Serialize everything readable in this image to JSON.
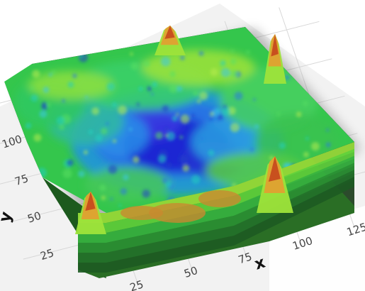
{
  "chart_data": {
    "type": "surface3d",
    "xlabel": "x",
    "ylabel": "y",
    "x_ticks": [
      "25",
      "50",
      "75",
      "100",
      "125"
    ],
    "y_ticks": [
      "25",
      "50",
      "75",
      "100"
    ],
    "xlim": [
      0,
      130
    ],
    "ylim": [
      0,
      130
    ],
    "colormap": "rainbow (blue = low, green = mid, red = high)",
    "colors": {
      "low": "#1a1ad0",
      "mid_low": "#1e90e6",
      "mid": "#22c84a",
      "mid_high": "#9ee33a",
      "high": "#c8501e"
    },
    "peaks": [
      {
        "x": 80,
        "y": 40,
        "level": "high"
      },
      {
        "x": 10,
        "y": 40,
        "level": "high"
      },
      {
        "x": 55,
        "y": 125,
        "level": "high"
      },
      {
        "x": 115,
        "y": 128,
        "level": "high"
      }
    ],
    "basin": {
      "x": 60,
      "y": 75,
      "level": "low"
    }
  }
}
